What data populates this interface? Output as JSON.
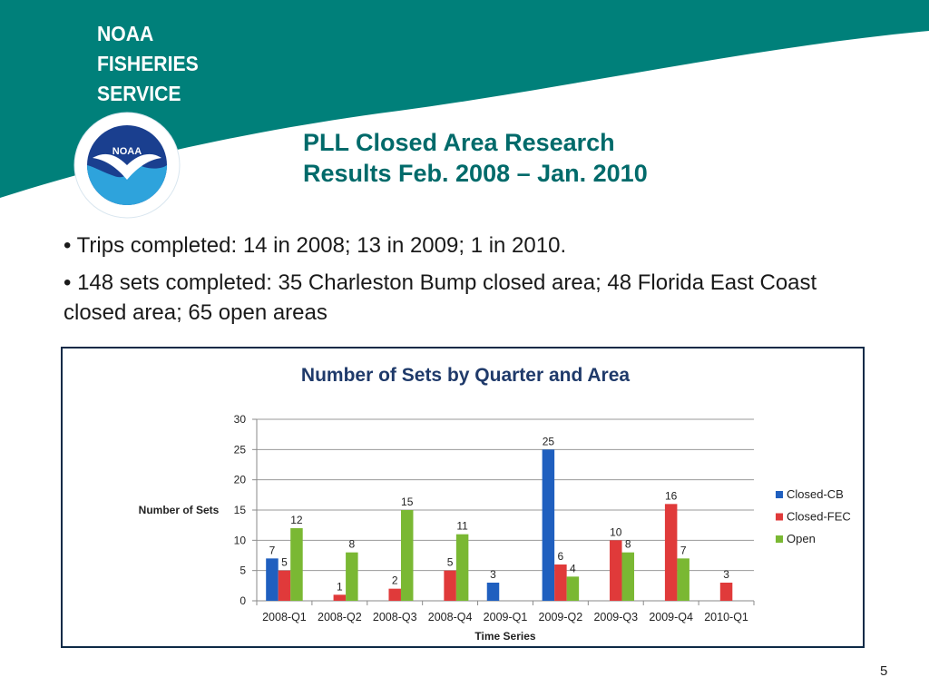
{
  "header": {
    "brand_lines": [
      "NOAA",
      "FISHERIES",
      "SERVICE"
    ],
    "seal_text": "NOAA",
    "title_line1": "PLL Closed Area Research",
    "title_line2": "Results Feb. 2008 – Jan. 2010"
  },
  "bullets": [
    "• Trips completed: 14 in 2008; 13 in 2009; 1 in 2010.",
    "• 148 sets completed: 35 Charleston Bump closed area; 48 Florida East Coast closed area; 65 open areas"
  ],
  "colors": {
    "teal": "#00807a",
    "title_teal": "#006a6a",
    "series_cb": "#1f5fbf",
    "series_fec": "#e03a3a",
    "series_open": "#7ab833"
  },
  "chart_data": {
    "type": "bar",
    "title": "Number of Sets by Quarter and Area",
    "xlabel": "Time Series",
    "ylabel": "Number of Sets",
    "ylim": [
      0,
      30
    ],
    "yticks": [
      0,
      5,
      10,
      15,
      20,
      25,
      30
    ],
    "grid": true,
    "legend_position": "right",
    "categories": [
      "2008-Q1",
      "2008-Q2",
      "2008-Q3",
      "2008-Q4",
      "2009-Q1",
      "2009-Q2",
      "2009-Q3",
      "2009-Q4",
      "2010-Q1"
    ],
    "series": [
      {
        "name": "Closed-CB",
        "color": "#1f5fbf",
        "values": [
          7,
          null,
          null,
          null,
          3,
          25,
          null,
          null,
          null
        ]
      },
      {
        "name": "Closed-FEC",
        "color": "#e03a3a",
        "values": [
          5,
          1,
          2,
          5,
          null,
          6,
          10,
          16,
          3
        ]
      },
      {
        "name": "Open",
        "color": "#7ab833",
        "values": [
          12,
          8,
          15,
          11,
          null,
          4,
          8,
          7,
          null
        ]
      }
    ]
  },
  "footer": {
    "page_number": "5"
  }
}
